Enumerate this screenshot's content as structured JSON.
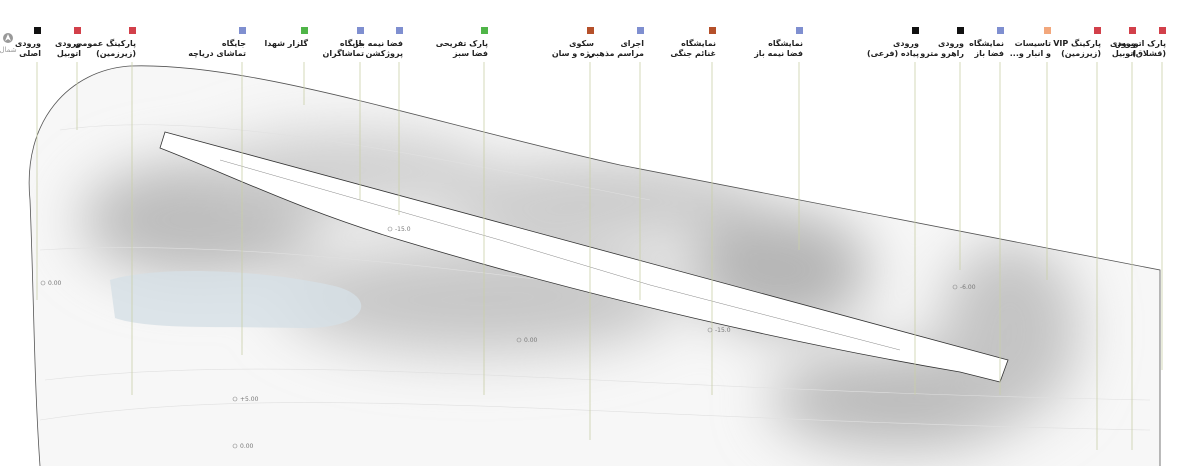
{
  "north": "شمال",
  "legend": [
    {
      "lines": [
        "ورودی",
        "اصلی"
      ],
      "color": "#111111"
    },
    {
      "lines": [
        "ورودی",
        "اتوبیل"
      ],
      "color": "#d2404a"
    },
    {
      "lines": [
        "پارکینگ عمومی",
        "(زیرزمین)"
      ],
      "color": "#d2404a"
    },
    {
      "lines": [
        "جایگاه",
        "تماشای دریاچه"
      ],
      "color": "#7f8fd0"
    },
    {
      "lines": [
        "گلزار شهدا"
      ],
      "color": "#4fb548"
    },
    {
      "lines": [
        "جایگاه",
        "تماشاگران"
      ],
      "color": "#7f8fd0"
    },
    {
      "lines": [
        "فضا نیمه باز",
        "پروژکشن"
      ],
      "color": "#7f8fd0"
    },
    {
      "lines": [
        "پارک تفریحی",
        "فضا سبز"
      ],
      "color": "#4fb548"
    },
    {
      "lines": [
        "سکوی",
        "رژه و سان"
      ],
      "color": "#b5502a"
    },
    {
      "lines": [
        "اجرای",
        "مراسم مذهبی"
      ],
      "color": "#7f8fd0"
    },
    {
      "lines": [
        "نمایشگاه",
        "غنائم جنگی"
      ],
      "color": "#b5502a"
    },
    {
      "lines": [
        "نمایشگاه",
        "فضا نیمه باز"
      ],
      "color": "#7f8fd0"
    },
    {
      "lines": [
        "ورودی",
        "پیاده (فرعی)"
      ],
      "color": "#111111"
    },
    {
      "lines": [
        "ورودی",
        "راهرو مترو"
      ],
      "color": "#111111"
    },
    {
      "lines": [
        "نمایشگاه",
        "فضا باز"
      ],
      "color": "#7f8fd0"
    },
    {
      "lines": [
        "تاسیسات",
        "و انبار و..."
      ],
      "color": "#f2a77c"
    },
    {
      "lines": [
        "پارکینگ VIP",
        "(زیرزمین)"
      ],
      "color": "#d2404a"
    },
    {
      "lines": [
        "ورودی",
        "اتوبیل"
      ],
      "color": "#d2404a"
    },
    {
      "lines": [
        "پارک اتوبوس",
        "(قشلاق)"
      ],
      "color": "#d2404a"
    }
  ],
  "elevations": [
    "0.00",
    "-15.0",
    "0.00",
    "-15.0",
    "-6.00",
    "+5.00",
    "0.00"
  ]
}
